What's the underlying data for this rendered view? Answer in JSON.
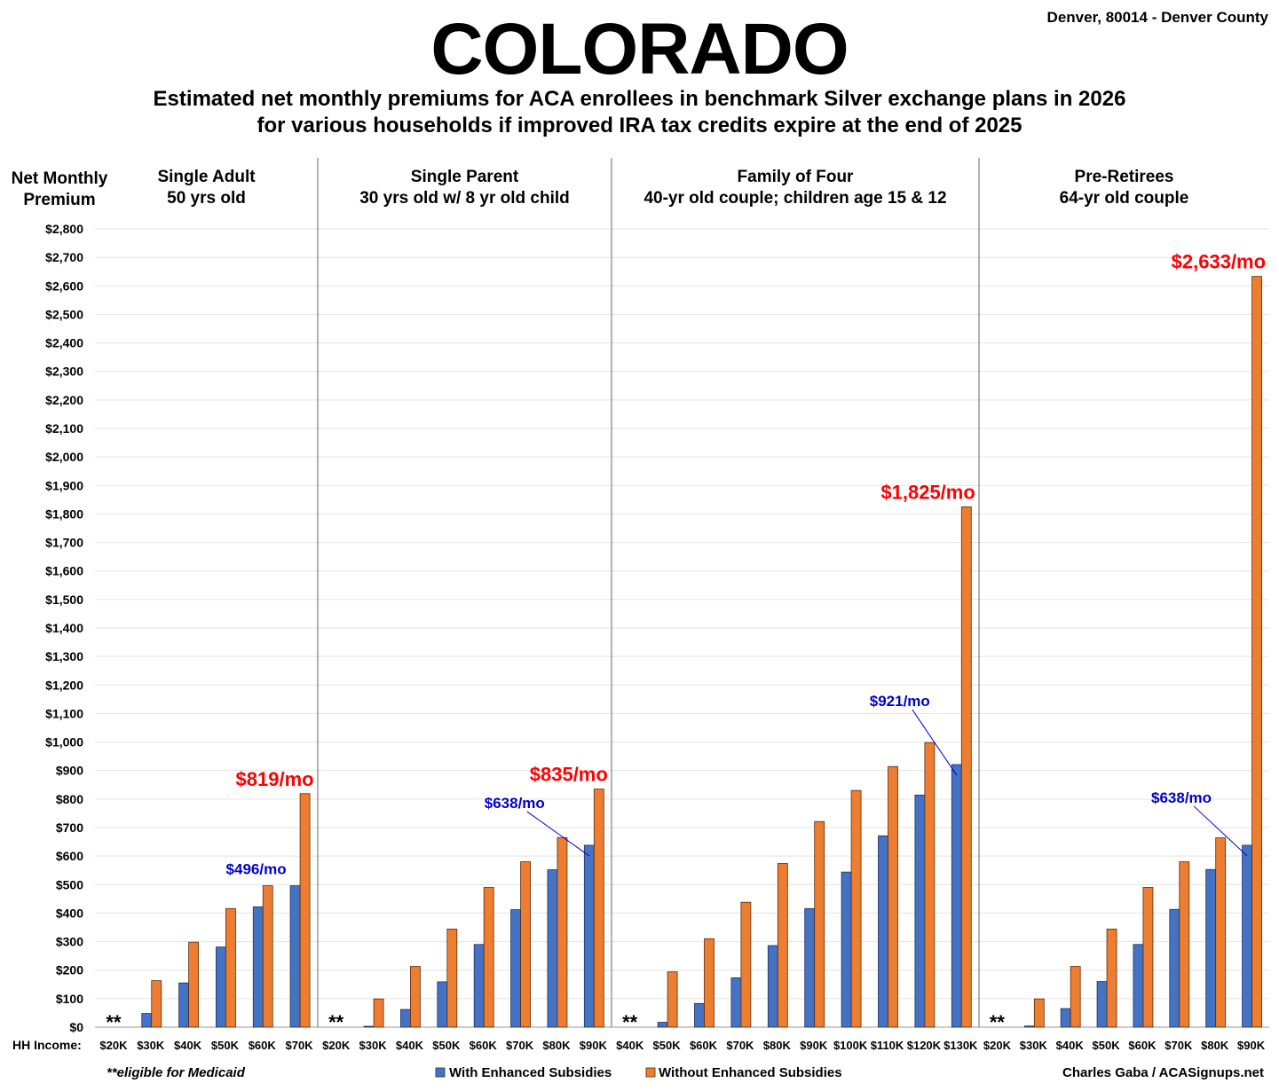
{
  "header": {
    "title": "COLORADO",
    "location": "Denver, 80014 - Denver County",
    "subtitle_line1": "Estimated net monthly premiums for ACA enrollees in benchmark Silver exchange plans in 2026",
    "subtitle_line2": "for various households if improved IRA tax credits expire at the end of 2025"
  },
  "footer": {
    "income_label": "HH Income:",
    "medicaid_note": "**eligible for Medicaid",
    "credit": "Charles Gaba / ACASignups.net"
  },
  "colors": {
    "with": "#4472c4",
    "without": "#ed7d31",
    "callout_red": "#ff0000",
    "callout_blue": "#0000cc"
  },
  "chart_data": {
    "type": "bar",
    "ylabel": "Net Monthly Premium",
    "ylim": [
      0,
      2800
    ],
    "ytick_step": 100,
    "grid": true,
    "legend_position": "bottom",
    "series_names": [
      "With Enhanced Subsidies",
      "Without Enhanced Subsidies"
    ],
    "groups": [
      {
        "title": "Single Adult",
        "subtitle": "50 yrs old",
        "categories": [
          "$20K",
          "$30K",
          "$40K",
          "$50K",
          "$60K",
          "$70K"
        ],
        "with": [
          0,
          48,
          155,
          281,
          422,
          496
        ],
        "without": [
          0,
          163,
          298,
          416,
          496,
          819
        ],
        "callout_without": "$819/mo",
        "callout_with": "$496/mo"
      },
      {
        "title": "Single Parent",
        "subtitle": "30 yrs old w/ 8 yr old child",
        "categories": [
          "$20K",
          "$30K",
          "$40K",
          "$50K",
          "$60K",
          "$70K",
          "$80K",
          "$90K"
        ],
        "with": [
          0,
          3,
          62,
          159,
          290,
          412,
          552,
          638
        ],
        "without": [
          0,
          99,
          213,
          344,
          490,
          580,
          665,
          835
        ],
        "callout_without": "$835/mo",
        "callout_with": "$638/mo"
      },
      {
        "title": "Family of Four",
        "subtitle": "40-yr old couple; children age 15 & 12",
        "categories": [
          "$40K",
          "$50K",
          "$60K",
          "$70K",
          "$80K",
          "$90K",
          "$100K",
          "$110K",
          "$120K",
          "$130K"
        ],
        "with": [
          0,
          17,
          83,
          173,
          286,
          416,
          544,
          671,
          814,
          921
        ],
        "without": [
          0,
          194,
          310,
          438,
          574,
          721,
          830,
          914,
          998,
          1825
        ],
        "callout_without": "$1,825/mo",
        "callout_with": "$921/mo"
      },
      {
        "title": "Pre-Retirees",
        "subtitle": "64-yr old couple",
        "categories": [
          "$20K",
          "$30K",
          "$40K",
          "$50K",
          "$60K",
          "$70K",
          "$80K",
          "$90K"
        ],
        "with": [
          0,
          4,
          65,
          160,
          290,
          413,
          553,
          638
        ],
        "without": [
          0,
          99,
          213,
          344,
          490,
          580,
          664,
          2633
        ],
        "callout_without": "$2,633/mo",
        "callout_with": "$638/mo"
      }
    ],
    "medicaid_marker": "**"
  }
}
